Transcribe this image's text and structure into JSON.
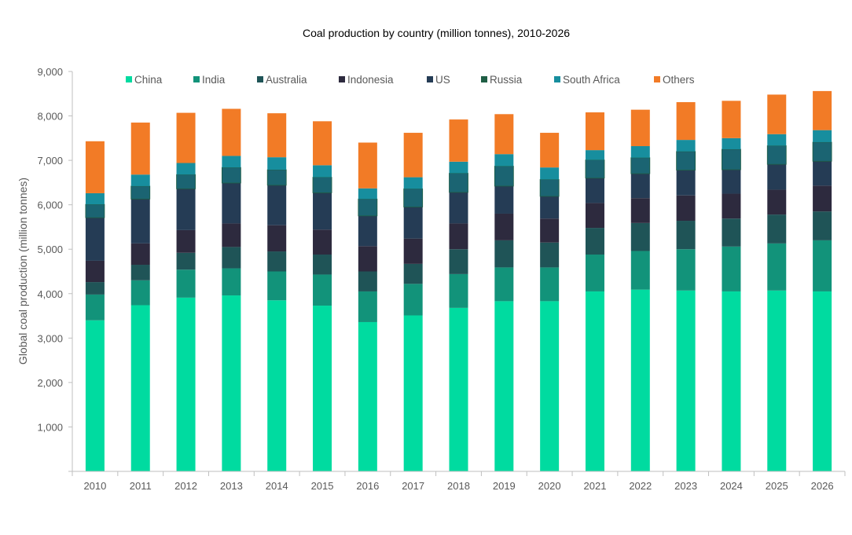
{
  "chart_data": {
    "type": "bar",
    "stacked": true,
    "title": "Coal production by country (million tonnes), 2010-2026",
    "xlabel": "",
    "ylabel": "Global coal production  (million tonnes)",
    "ylim": [
      0,
      9000
    ],
    "yticks": [
      0,
      1000,
      2000,
      3000,
      4000,
      5000,
      6000,
      7000,
      8000,
      9000
    ],
    "ytick_labels": [
      "",
      "1,000",
      "2,000",
      "3,000",
      "4,000",
      "5,000",
      "6,000",
      "7,000",
      "8,000",
      "9,000"
    ],
    "grid": false,
    "legend_placement": "top",
    "categories": [
      "2010",
      "2011",
      "2012",
      "2013",
      "2014",
      "2015",
      "2016",
      "2017",
      "2018",
      "2019",
      "2020",
      "2021",
      "2022",
      "2023",
      "2024",
      "2025",
      "2026"
    ],
    "series": [
      {
        "name": "China",
        "color": "#00dba0",
        "values": [
          3400,
          3740,
          3910,
          3960,
          3850,
          3730,
          3360,
          3510,
          3680,
          3830,
          3830,
          4050,
          4090,
          4070,
          4050,
          4070,
          4050
        ]
      },
      {
        "name": "India",
        "color": "#12937a",
        "values": [
          580,
          560,
          630,
          610,
          650,
          700,
          690,
          710,
          760,
          760,
          760,
          830,
          870,
          930,
          1010,
          1060,
          1150
        ]
      },
      {
        "name": "Australia",
        "color": "#1f5457",
        "values": [
          280,
          350,
          380,
          480,
          450,
          450,
          450,
          450,
          560,
          610,
          560,
          600,
          630,
          640,
          630,
          650,
          650
        ]
      },
      {
        "name": "Indonesia",
        "color": "#2d2a3e",
        "values": [
          480,
          480,
          510,
          530,
          590,
          560,
          570,
          570,
          580,
          600,
          540,
          560,
          560,
          570,
          560,
          560,
          580
        ]
      },
      {
        "name": "US",
        "color": "#253c55",
        "values": [
          970,
          1000,
          930,
          910,
          900,
          830,
          680,
          710,
          700,
          620,
          500,
          560,
          550,
          570,
          540,
          570,
          550
        ]
      },
      {
        "name": "Russia",
        "color": "#1b6472",
        "legend_color": "#1f5e45",
        "values": [
          300,
          290,
          320,
          350,
          350,
          350,
          380,
          410,
          430,
          450,
          380,
          410,
          360,
          420,
          460,
          420,
          430
        ]
      },
      {
        "name": "South Africa",
        "color": "#178e9e",
        "values": [
          250,
          260,
          260,
          260,
          280,
          270,
          240,
          260,
          260,
          270,
          270,
          220,
          260,
          260,
          250,
          260,
          270
        ]
      },
      {
        "name": "Others",
        "color": "#f27b26",
        "values": [
          1170,
          1170,
          1130,
          1060,
          990,
          990,
          1030,
          1000,
          950,
          900,
          780,
          850,
          820,
          850,
          840,
          890,
          880
        ]
      }
    ]
  }
}
